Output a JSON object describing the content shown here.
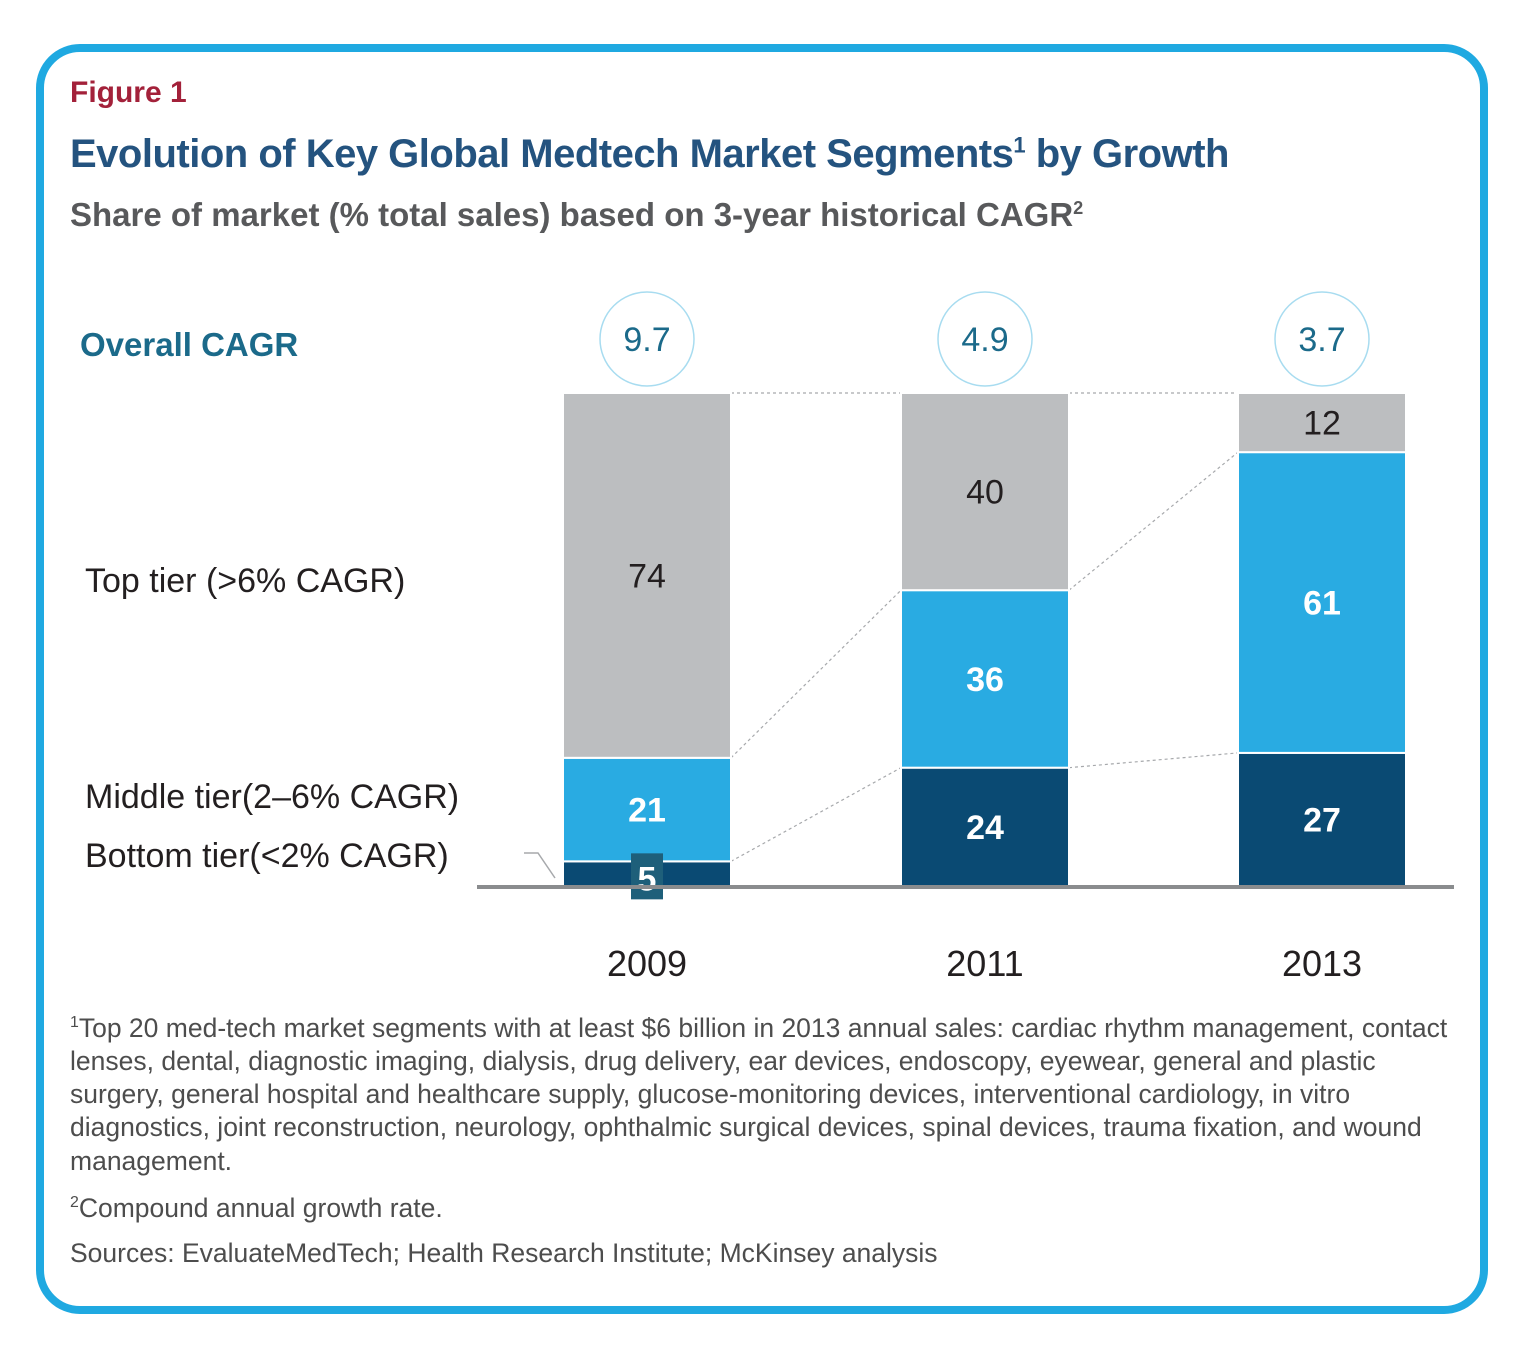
{
  "figure_label": "Figure 1",
  "title": "Evolution of Key Global Medtech Market Segments",
  "title_sup": "1",
  "title_suffix": " by Growth",
  "subtitle": "Share of market (% total sales) based on 3-year historical CAGR",
  "subtitle_sup": "2",
  "footnotes": {
    "fn1_marker": "1",
    "fn1_text": "Top 20 med-tech market segments with at least $6 billion in 2013 annual sales: cardiac rhythm management, contact lenses, dental, diagnostic imaging, dialysis, drug delivery, ear devices, endoscopy, eyewear, general and plastic surgery, general hospital and healthcare supply, glucose-monitoring devices, interventional cardiology, in vitro diagnostics, joint reconstruction, neurology, ophthalmic surgical devices, spinal devices, trauma fixation, and wound management.",
    "fn2_marker": "2",
    "fn2_text": "Compound annual growth rate.",
    "sources": "Sources: EvaluateMedTech; Health Research Institute; McKinsey analysis"
  },
  "colors": {
    "frame": "#1fa9e1",
    "top_tier": "#bcbec0",
    "middle_tier": "#29abe2",
    "bottom_tier": "#0a4a73",
    "cagr_circle": "#a8dcf0",
    "cagr_text": "#1b6a8a"
  },
  "chart_data": {
    "type": "bar",
    "stacked": true,
    "categories": [
      "2009",
      "2011",
      "2013"
    ],
    "series": [
      {
        "name": "Bottom tier(<2% CAGR)",
        "values": [
          5,
          24,
          27
        ]
      },
      {
        "name": "Middle tier(2–6% CAGR)",
        "values": [
          21,
          36,
          61
        ]
      },
      {
        "name": "Top tier (>6% CAGR)",
        "values": [
          74,
          40,
          12
        ]
      }
    ],
    "overall_cagr_label": "Overall CAGR",
    "overall_cagr": [
      "9.7",
      "4.9",
      "3.7"
    ],
    "ylim": [
      0,
      100
    ],
    "xlabel": "",
    "ylabel": "",
    "grid": false,
    "legend": "left"
  }
}
